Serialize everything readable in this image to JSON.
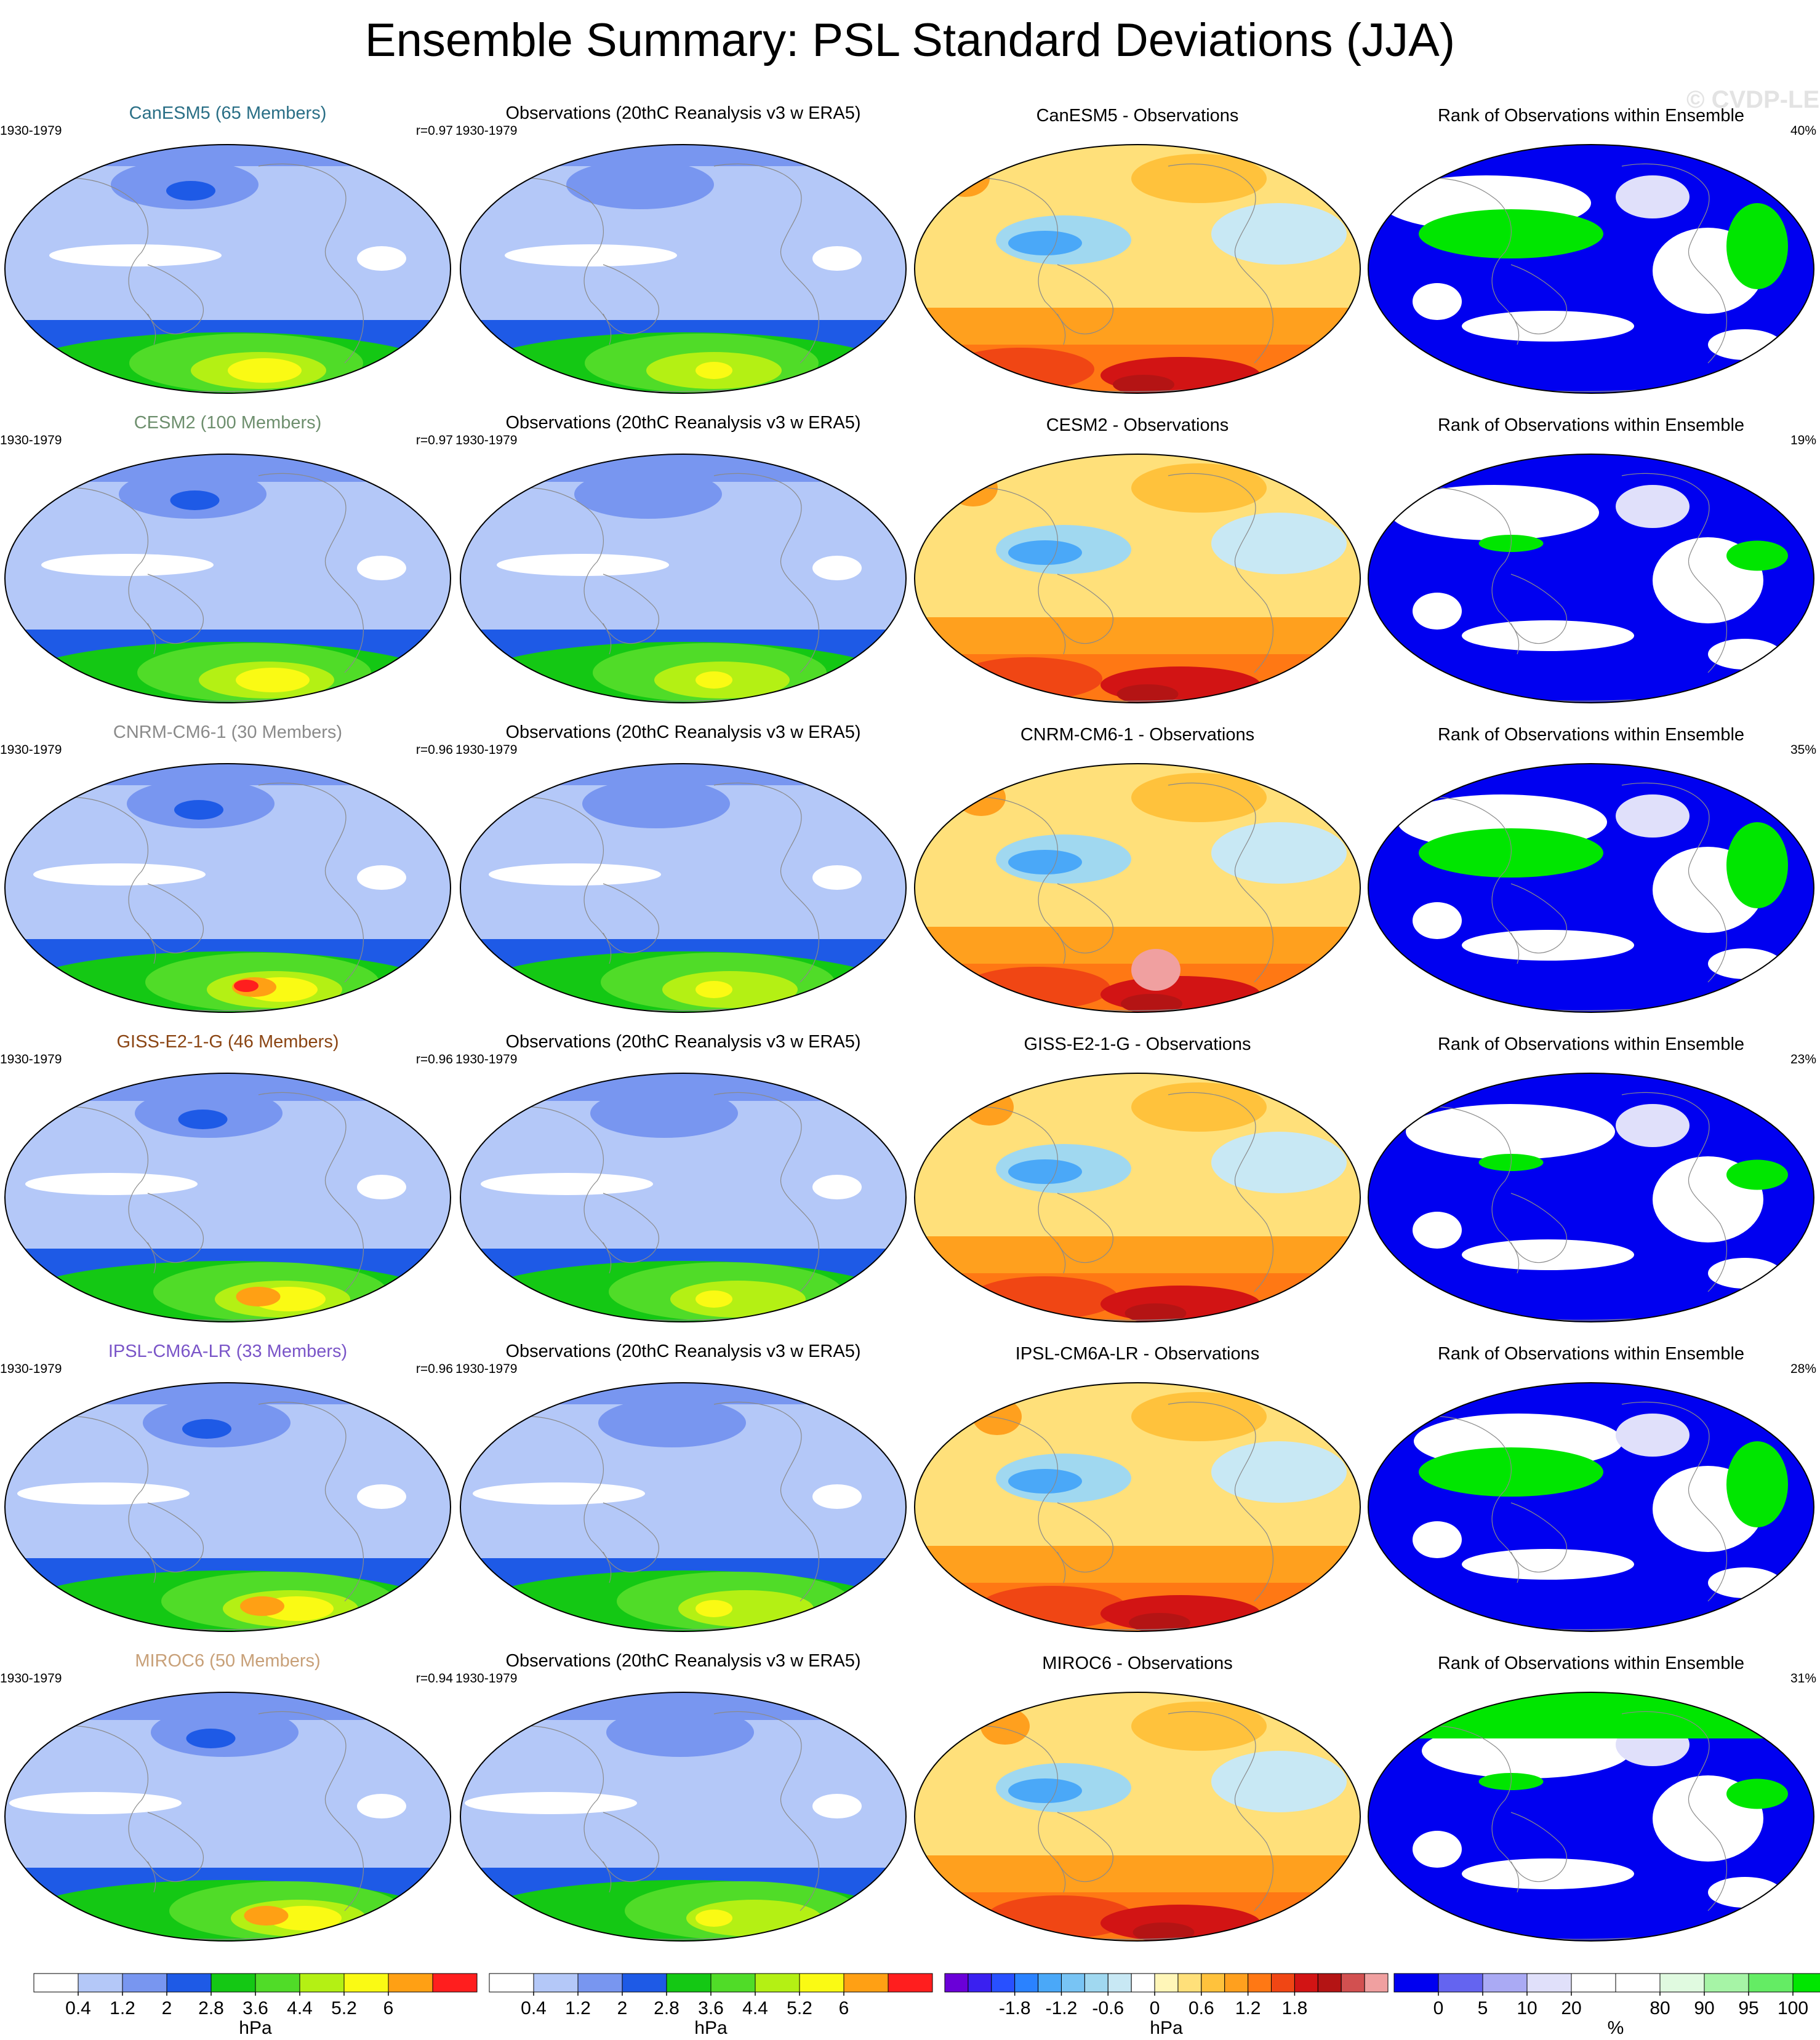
{
  "title": "Ensemble Summary: PSL Standard Deviations (JJA)",
  "watermark": "© CVDP-LE",
  "rows": [
    {
      "model_title": "CanESM5 (65 Members)",
      "model_color": "#2a6f86",
      "period": "1930-1979",
      "r_value": "r=0.97",
      "obs_title": "Observations (20thC Reanalysis v3 w ERA5)",
      "obs_period": "1930-1979",
      "diff_title": "CanESM5 - Observations",
      "rank_title": "Rank of Observations within Ensemble",
      "rank_pct": "40%"
    },
    {
      "model_title": "CESM2 (100 Members)",
      "model_color": "#6e8f6e",
      "period": "1930-1979",
      "r_value": "r=0.97",
      "obs_title": "Observations (20thC Reanalysis v3 w ERA5)",
      "obs_period": "1930-1979",
      "diff_title": "CESM2 - Observations",
      "rank_title": "Rank of Observations within Ensemble",
      "rank_pct": "19%"
    },
    {
      "model_title": "CNRM-CM6-1 (30 Members)",
      "model_color": "#8a8a8a",
      "period": "1930-1979",
      "r_value": "r=0.96",
      "obs_title": "Observations (20thC Reanalysis v3 w ERA5)",
      "obs_period": "1930-1979",
      "diff_title": "CNRM-CM6-1 - Observations",
      "rank_title": "Rank of Observations within Ensemble",
      "rank_pct": "35%"
    },
    {
      "model_title": "GISS-E2-1-G (46 Members)",
      "model_color": "#8b4513",
      "period": "1930-1979",
      "r_value": "r=0.96",
      "obs_title": "Observations (20thC Reanalysis v3 w ERA5)",
      "obs_period": "1930-1979",
      "diff_title": "GISS-E2-1-G - Observations",
      "rank_title": "Rank of Observations within Ensemble",
      "rank_pct": "23%"
    },
    {
      "model_title": "IPSL-CM6A-LR (33 Members)",
      "model_color": "#7a55c8",
      "period": "1930-1979",
      "r_value": "r=0.96",
      "obs_title": "Observations (20thC Reanalysis v3 w ERA5)",
      "obs_period": "1930-1979",
      "diff_title": "IPSL-CM6A-LR - Observations",
      "rank_title": "Rank of Observations within Ensemble",
      "rank_pct": "28%"
    },
    {
      "model_title": "MIROC6 (50 Members)",
      "model_color": "#c8a078",
      "period": "1930-1979",
      "r_value": "r=0.94",
      "obs_title": "Observations (20thC Reanalysis v3 w ERA5)",
      "obs_period": "1930-1979",
      "diff_title": "MIROC6 - Observations",
      "rank_title": "Rank of Observations within Ensemble",
      "rank_pct": "31%"
    }
  ],
  "colorbars": [
    {
      "unit": "hPa",
      "ticks": [
        "0.4",
        "1.2",
        "2",
        "2.8",
        "3.6",
        "4.4",
        "5.2",
        "6"
      ],
      "colors": [
        "#ffffff",
        "#b4c8f8",
        "#7896f0",
        "#1e5ae6",
        "#14c814",
        "#50dc28",
        "#b4f014",
        "#fafa14",
        "#ffa014",
        "#ff1e1e"
      ]
    },
    {
      "unit": "hPa",
      "ticks": [
        "0.4",
        "1.2",
        "2",
        "2.8",
        "3.6",
        "4.4",
        "5.2",
        "6"
      ],
      "colors": [
        "#ffffff",
        "#b4c8f8",
        "#7896f0",
        "#1e5ae6",
        "#14c814",
        "#50dc28",
        "#b4f014",
        "#fafa14",
        "#ffa014",
        "#ff1e1e"
      ]
    },
    {
      "unit": "hPa",
      "ticks": [
        "-1.8",
        "-1.2",
        "-0.6",
        "0",
        "0.6",
        "1.2",
        "1.8"
      ],
      "colors": [
        "#6a00d8",
        "#3a20f0",
        "#2850ff",
        "#2a82ff",
        "#4aa8f8",
        "#78c4f4",
        "#a0d8f0",
        "#c8e8f4",
        "#ffffff",
        "#fff6b8",
        "#ffe07a",
        "#ffc23c",
        "#ffa01e",
        "#ff7814",
        "#f04614",
        "#d21414",
        "#b41414",
        "#d25050",
        "#f0a0a0"
      ]
    },
    {
      "unit": "%",
      "ticks": [
        "0",
        "5",
        "10",
        "20",
        "80",
        "90",
        "95",
        "100"
      ],
      "colors": [
        "#0000f0",
        "#6464f0",
        "#aaaaf4",
        "#e0e0fa",
        "#ffffff",
        "#ffffff",
        "#e0fae0",
        "#a6f4a6",
        "#64ec64",
        "#00e600"
      ]
    }
  ]
}
